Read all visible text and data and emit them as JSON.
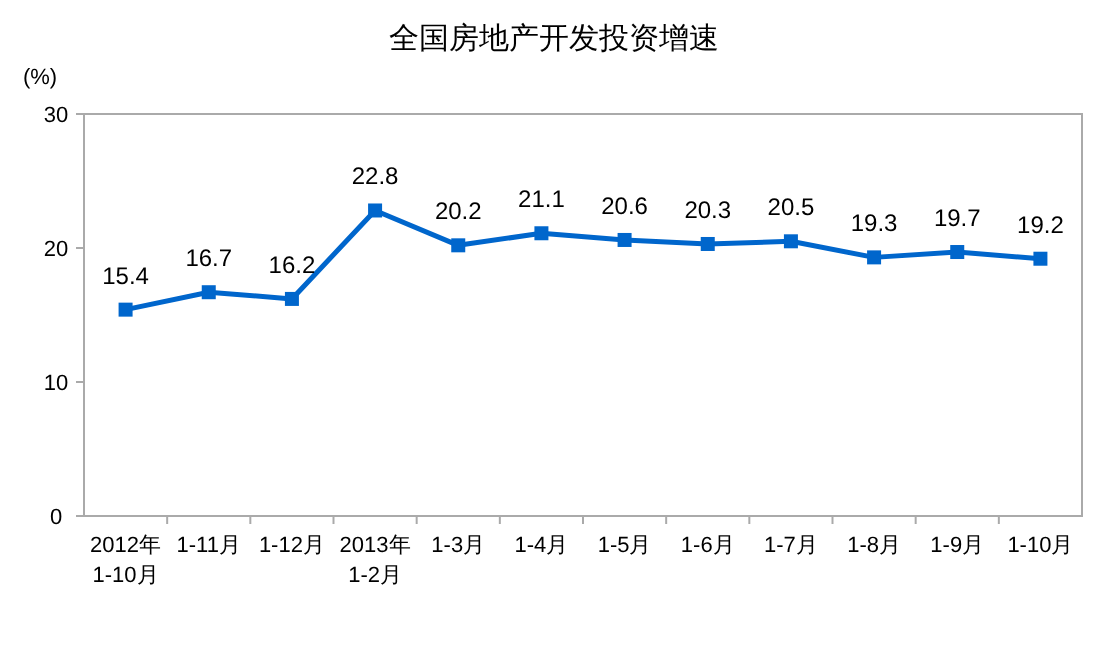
{
  "chart_data": {
    "type": "line",
    "title": "全国房地产开发投资增速",
    "ylabel": "(%)",
    "categories": [
      "2012年\n1-10月",
      "1-11月",
      "1-12月",
      "2013年\n1-2月",
      "1-3月",
      "1-4月",
      "1-5月",
      "1-6月",
      "1-7月",
      "1-8月",
      "1-9月",
      "1-10月"
    ],
    "series": [
      {
        "color": "#0066cc",
        "values": [
          15.4,
          16.7,
          16.2,
          22.8,
          20.2,
          21.1,
          20.6,
          20.3,
          20.5,
          19.3,
          19.7,
          19.2
        ]
      }
    ],
    "ylim": [
      0,
      30
    ],
    "yticks": [
      0,
      10,
      20,
      30
    ],
    "grid": false,
    "marker": "square",
    "line_style": "solid",
    "data_labels": true
  }
}
